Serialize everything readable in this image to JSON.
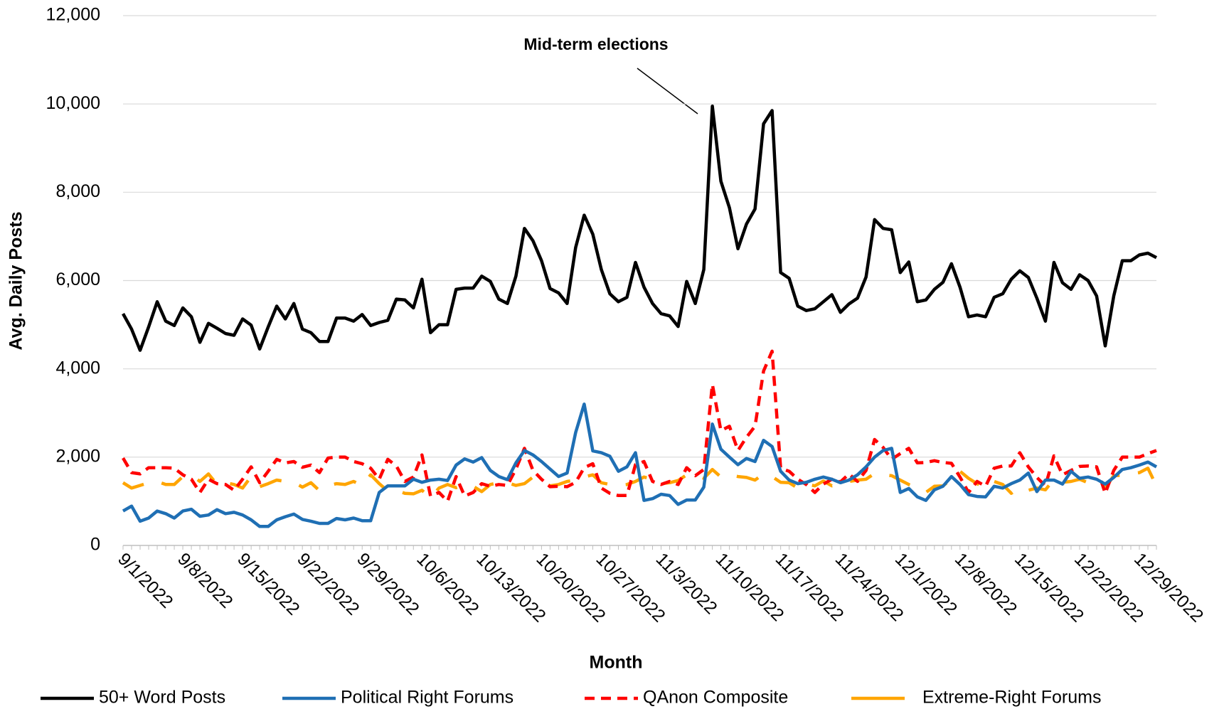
{
  "chart_data": {
    "type": "line",
    "annotation": "Mid-term elections",
    "xlabel": "Month",
    "ylabel": "Avg. Daily Posts",
    "ylim": [
      0,
      12000
    ],
    "yticks": [
      0,
      {
        "value": 2000,
        "label": "2,000"
      },
      {
        "value": 4000,
        "label": "4,000"
      },
      {
        "value": 6000,
        "label": "6,000"
      },
      {
        "value": 8000,
        "label": "8,000"
      },
      {
        "value": 10000,
        "label": "10,000"
      },
      {
        "value": 12000,
        "label": "12,000"
      }
    ],
    "grid": true,
    "legend": "bottom",
    "categories": [
      "9/1/2022",
      null,
      null,
      null,
      null,
      null,
      null,
      "9/8/2022",
      null,
      null,
      null,
      null,
      null,
      null,
      "9/15/2022",
      null,
      null,
      null,
      null,
      null,
      null,
      "9/22/2022",
      null,
      null,
      null,
      null,
      null,
      null,
      "9/29/2022",
      null,
      null,
      null,
      null,
      null,
      null,
      "10/6/2022",
      null,
      null,
      null,
      null,
      null,
      null,
      "10/13/2022",
      null,
      null,
      null,
      null,
      null,
      null,
      "10/20/2022",
      null,
      null,
      null,
      null,
      null,
      null,
      "10/27/2022",
      null,
      null,
      null,
      null,
      null,
      null,
      "11/3/2022",
      null,
      null,
      null,
      null,
      null,
      null,
      "11/10/2022",
      null,
      null,
      null,
      null,
      null,
      null,
      "11/17/2022",
      null,
      null,
      null,
      null,
      null,
      null,
      "11/24/2022",
      null,
      null,
      null,
      null,
      null,
      null,
      "12/1/2022",
      null,
      null,
      null,
      null,
      null,
      null,
      "12/8/2022",
      null,
      null,
      null,
      null,
      null,
      null,
      "12/15/2022",
      null,
      null,
      null,
      null,
      null,
      null,
      "12/22/2022",
      null,
      null,
      null,
      null,
      null,
      null,
      "12/29/2022",
      null,
      null
    ],
    "series": [
      {
        "name": "50+ Word Posts",
        "color": "#000000",
        "dash": "solid",
        "values": [
          5250,
          4900,
          4420,
          4950,
          5520,
          5080,
          4980,
          5380,
          5180,
          4600,
          5030,
          4920,
          4800,
          4760,
          5130,
          4990,
          4450,
          4950,
          5420,
          5130,
          5480,
          4900,
          4820,
          4620,
          4620,
          5150,
          5150,
          5080,
          5230,
          4980,
          5050,
          5100,
          5580,
          5560,
          5380,
          6030,
          4820,
          5000,
          5000,
          5800,
          5830,
          5830,
          6100,
          5980,
          5580,
          5480,
          6100,
          7180,
          6900,
          6450,
          5820,
          5720,
          5480,
          6750,
          7480,
          7050,
          6250,
          5700,
          5520,
          5620,
          6410,
          5850,
          5480,
          5250,
          5200,
          4960,
          5980,
          5480,
          6250,
          9950,
          8250,
          7650,
          6720,
          7280,
          7620,
          9550,
          9850,
          6180,
          6050,
          5420,
          5320,
          5360,
          5520,
          5680,
          5280,
          5470,
          5600,
          6080,
          7380,
          7180,
          7150,
          6180,
          6420,
          5520,
          5560,
          5800,
          5960,
          6380,
          5850,
          5180,
          5220,
          5180,
          5620,
          5700,
          6030,
          6220,
          6070,
          5600,
          5080,
          6410,
          5950,
          5800,
          6130,
          6000,
          5650,
          4520,
          5650,
          6450,
          6450,
          6580,
          6620,
          6520
        ]
      },
      {
        "name": "Political Right Forums",
        "color": "#1f6fb4",
        "dash": "solid",
        "values": [
          780,
          890,
          550,
          620,
          780,
          720,
          620,
          780,
          820,
          660,
          690,
          810,
          720,
          750,
          690,
          580,
          430,
          430,
          580,
          650,
          710,
          590,
          550,
          500,
          500,
          610,
          580,
          620,
          560,
          560,
          1200,
          1350,
          1350,
          1350,
          1500,
          1430,
          1480,
          1500,
          1470,
          1820,
          1960,
          1890,
          1990,
          1700,
          1560,
          1490,
          1870,
          2150,
          2050,
          1900,
          1730,
          1560,
          1640,
          2560,
          3200,
          2140,
          2100,
          2020,
          1680,
          1780,
          2100,
          1020,
          1060,
          1160,
          1130,
          930,
          1030,
          1030,
          1320,
          2750,
          2180,
          2000,
          1830,
          1970,
          1900,
          2380,
          2240,
          1680,
          1480,
          1400,
          1430,
          1500,
          1550,
          1500,
          1420,
          1480,
          1600,
          1780,
          2000,
          2150,
          2200,
          1200,
          1290,
          1100,
          1020,
          1260,
          1340,
          1560,
          1380,
          1150,
          1110,
          1100,
          1340,
          1300,
          1400,
          1480,
          1640,
          1220,
          1480,
          1480,
          1390,
          1680,
          1520,
          1550,
          1500,
          1390,
          1540,
          1720,
          1760,
          1820,
          1890,
          1780
        ]
      },
      {
        "name": "QAnon Composite",
        "color": "#ff0000",
        "dash": "dash",
        "values": [
          1980,
          1650,
          1620,
          1760,
          1760,
          1760,
          1750,
          1600,
          1500,
          1200,
          1500,
          1400,
          1380,
          1250,
          1500,
          1780,
          1420,
          1680,
          1950,
          1870,
          1900,
          1770,
          1820,
          1650,
          1980,
          2000,
          2000,
          1900,
          1850,
          1750,
          1500,
          1950,
          1800,
          1450,
          1550,
          2050,
          1120,
          1200,
          1000,
          1560,
          1120,
          1200,
          1400,
          1340,
          1380,
          1360,
          1730,
          2200,
          1700,
          1500,
          1330,
          1340,
          1330,
          1430,
          1760,
          1850,
          1300,
          1180,
          1130,
          1130,
          1830,
          1900,
          1450,
          1380,
          1450,
          1380,
          1760,
          1580,
          1720,
          3650,
          2600,
          2700,
          2150,
          2450,
          2700,
          3950,
          4400,
          1750,
          1680,
          1500,
          1380,
          1200,
          1390,
          1500,
          1440,
          1620,
          1450,
          1700,
          2400,
          2220,
          1950,
          2080,
          2200,
          1870,
          1880,
          1920,
          1880,
          1860,
          1550,
          1200,
          1450,
          1340,
          1750,
          1800,
          1800,
          2100,
          1780,
          1540,
          1350,
          2030,
          1600,
          1700,
          1790,
          1800,
          1780,
          1180,
          1700,
          2000,
          2000,
          2000,
          2080,
          2150
        ]
      },
      {
        "name": "Extreme-Right Forums",
        "color": "#ffa500",
        "dash": "longdash",
        "values": [
          1420,
          1300,
          1360,
          1420,
          1450,
          1380,
          1380,
          1560,
          1600,
          1450,
          1620,
          1380,
          1420,
          1380,
          1300,
          1560,
          1330,
          1400,
          1480,
          1450,
          1430,
          1320,
          1420,
          1240,
          1350,
          1400,
          1380,
          1450,
          1350,
          1600,
          1400,
          1230,
          1250,
          1180,
          1170,
          1250,
          1080,
          1300,
          1380,
          1310,
          1380,
          1340,
          1220,
          1380,
          1420,
          1420,
          1360,
          1400,
          1550,
          1450,
          1350,
          1380,
          1450,
          1480,
          1550,
          1600,
          1420,
          1380,
          1360,
          1380,
          1450,
          1550,
          1500,
          1400,
          1420,
          1470,
          1600,
          1600,
          1520,
          1720,
          1550,
          1600,
          1560,
          1540,
          1480,
          1620,
          1560,
          1430,
          1420,
          1300,
          1390,
          1350,
          1460,
          1350,
          1400,
          1450,
          1480,
          1500,
          1630,
          1600,
          1580,
          1480,
          1380,
          1300,
          1200,
          1340,
          1350,
          1500,
          1680,
          1520,
          1400,
          1300,
          1450,
          1380,
          1180,
          1320,
          1250,
          1300,
          1260,
          1500,
          1430,
          1450,
          1500,
          1420,
          1350,
          1300,
          1580,
          1590,
          1620,
          1650,
          1750,
          1350
        ]
      }
    ]
  }
}
